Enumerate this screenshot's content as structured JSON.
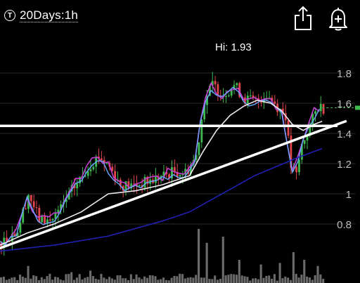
{
  "header": {
    "timeframe_icon": "T",
    "timeframe_label": "20Days:1h",
    "share_icon": "share-icon",
    "alert_icon": "bell-plus-icon"
  },
  "hi_label": "Hi: 1.93",
  "colors": {
    "background": "#000000",
    "candle_up": "#3fb950",
    "candle_down": "#e0474c",
    "ma_fast": "#c040d0",
    "ma_fast2": "#6aa8ff",
    "ma_mid": "#f0e8f0",
    "ma_slow": "#2020b0",
    "trendline": "#ffffff",
    "last_price": "#3fb950"
  },
  "chart_data": {
    "type": "line",
    "title": "",
    "xlabel": "",
    "ylabel": "",
    "ylim": [
      0.6,
      1.95
    ],
    "y_ticks": [
      {
        "value": 1.8,
        "label": "1.8"
      },
      {
        "value": 1.6,
        "label": "1.6"
      },
      {
        "value": 1.4,
        "label": "1.4"
      },
      {
        "value": 1.2,
        "label": "1.2"
      },
      {
        "value": 1.0,
        "label": "1"
      },
      {
        "value": 0.8,
        "label": "0.8"
      }
    ],
    "grid": true,
    "n_periods": 120,
    "high_value": 1.93,
    "last_price": 1.57,
    "price_path": [
      [
        0,
        0.68
      ],
      [
        6,
        0.76
      ],
      [
        10,
        1.0
      ],
      [
        14,
        0.83
      ],
      [
        18,
        0.82
      ],
      [
        22,
        0.9
      ],
      [
        26,
        1.02
      ],
      [
        30,
        1.12
      ],
      [
        33,
        1.2
      ],
      [
        36,
        1.25
      ],
      [
        40,
        1.18
      ],
      [
        44,
        1.06
      ],
      [
        48,
        1.05
      ],
      [
        52,
        1.07
      ],
      [
        56,
        1.09
      ],
      [
        60,
        1.12
      ],
      [
        64,
        1.15
      ],
      [
        68,
        1.14
      ],
      [
        72,
        1.25
      ],
      [
        75,
        1.62
      ],
      [
        78,
        1.72
      ],
      [
        82,
        1.66
      ],
      [
        86,
        1.72
      ],
      [
        90,
        1.63
      ],
      [
        94,
        1.61
      ],
      [
        98,
        1.66
      ],
      [
        102,
        1.58
      ],
      [
        105,
        1.52
      ],
      [
        107,
        1.18
      ],
      [
        109,
        1.12
      ],
      [
        111,
        1.32
      ],
      [
        114,
        1.45
      ],
      [
        117,
        1.58
      ],
      [
        119,
        1.57
      ]
    ],
    "horizontal_line": {
      "value": 1.45
    },
    "trendline": {
      "from": [
        0,
        0.64
      ],
      "to": [
        120,
        1.43
      ]
    },
    "series": [
      {
        "name": "",
        "role": "ma_mid",
        "points": [
          [
            0,
            0.66
          ],
          [
            10,
            0.74
          ],
          [
            20,
            0.8
          ],
          [
            30,
            0.88
          ],
          [
            40,
            1.0
          ],
          [
            50,
            1.02
          ],
          [
            60,
            1.06
          ],
          [
            70,
            1.12
          ],
          [
            75,
            1.28
          ],
          [
            80,
            1.42
          ],
          [
            85,
            1.52
          ],
          [
            90,
            1.58
          ],
          [
            95,
            1.62
          ],
          [
            100,
            1.6
          ],
          [
            104,
            1.55
          ],
          [
            108,
            1.46
          ],
          [
            112,
            1.42
          ],
          [
            116,
            1.46
          ],
          [
            119,
            1.48
          ]
        ]
      },
      {
        "name": "",
        "role": "ma_slow",
        "points": [
          [
            0,
            0.62
          ],
          [
            20,
            0.66
          ],
          [
            40,
            0.72
          ],
          [
            60,
            0.82
          ],
          [
            70,
            0.88
          ],
          [
            78,
            0.96
          ],
          [
            86,
            1.04
          ],
          [
            94,
            1.12
          ],
          [
            102,
            1.18
          ],
          [
            110,
            1.24
          ],
          [
            119,
            1.3
          ]
        ]
      }
    ],
    "volume": [
      {
        "x": 10,
        "v": 0.22
      },
      {
        "x": 18,
        "v": 0.12
      },
      {
        "x": 26,
        "v": 0.14
      },
      {
        "x": 33,
        "v": 0.16
      },
      {
        "x": 44,
        "v": 0.1
      },
      {
        "x": 55,
        "v": 0.1
      },
      {
        "x": 66,
        "v": 0.12
      },
      {
        "x": 73,
        "v": 0.7
      },
      {
        "x": 76,
        "v": 0.52
      },
      {
        "x": 82,
        "v": 0.6
      },
      {
        "x": 88,
        "v": 0.3
      },
      {
        "x": 96,
        "v": 0.24
      },
      {
        "x": 103,
        "v": 0.26
      },
      {
        "x": 108,
        "v": 0.4
      },
      {
        "x": 112,
        "v": 0.3
      },
      {
        "x": 117,
        "v": 0.22
      }
    ]
  }
}
